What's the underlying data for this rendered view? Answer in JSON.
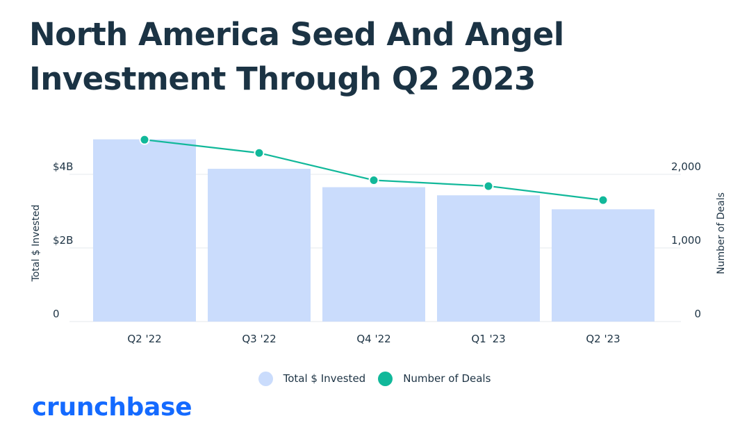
{
  "chart_data": {
    "type": "bar",
    "title": "North America Seed And Angel Investment Through Q2 2023",
    "categories": [
      "Q2 '22",
      "Q3 '22",
      "Q4 '22",
      "Q1 '23",
      "Q2 '23"
    ],
    "series": [
      {
        "name": "Total $ Invested",
        "type": "bar",
        "axis": "left",
        "color": "#cadcfc",
        "values": [
          4.95,
          4.15,
          3.65,
          3.43,
          3.05
        ]
      },
      {
        "name": "Number of Deals",
        "type": "line",
        "axis": "right",
        "color": "#11b89a",
        "values": [
          2470,
          2290,
          1920,
          1840,
          1650
        ]
      }
    ],
    "y_left": {
      "label": "Total $ Invested",
      "ylim": [
        0,
        5
      ],
      "ticks": [
        {
          "value": 0,
          "label": "0"
        },
        {
          "value": 2,
          "label": "$2B"
        },
        {
          "value": 4,
          "label": "$4B"
        }
      ]
    },
    "y_right": {
      "label": "Number of Deals",
      "ylim": [
        0,
        2500
      ],
      "ticks": [
        {
          "value": 0,
          "label": "0"
        },
        {
          "value": 1000,
          "label": "1,000"
        },
        {
          "value": 2000,
          "label": "2,000"
        }
      ]
    },
    "grid": true,
    "legend_placement": "bottom-center"
  },
  "colors": {
    "bar": "#cadcfc",
    "line": "#11b89a",
    "brand": "#146aff",
    "text": "#1d3344",
    "grid": "#e6e8ec"
  },
  "brand": "crunchbase"
}
